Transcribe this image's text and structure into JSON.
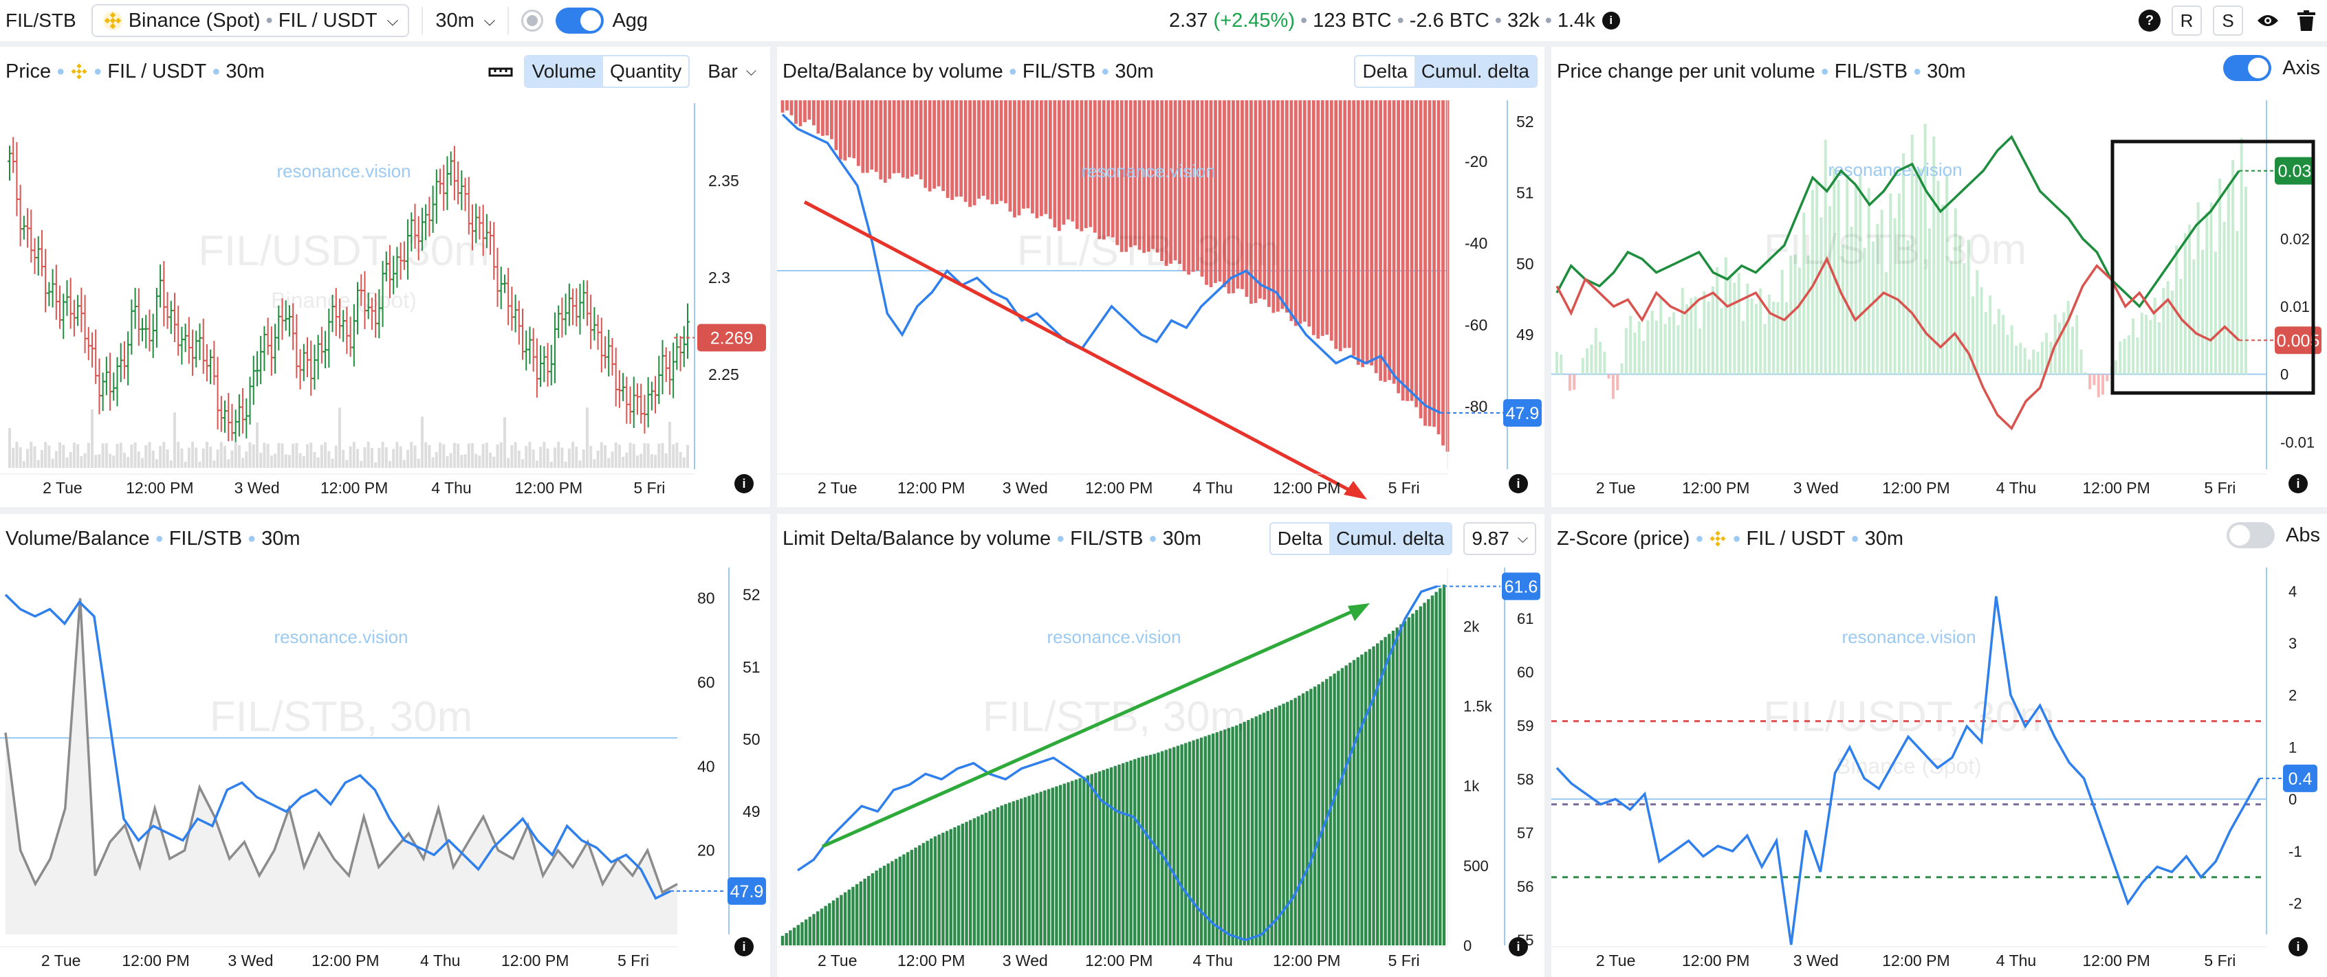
{
  "topbar": {
    "symbol": "FIL/STB",
    "exchange_name": "Binance (Spot)",
    "pair": "FIL / USDT",
    "interval": "30m",
    "agg_label": "Agg",
    "price": "2.37",
    "change": "(+2.45%)",
    "stat_btc_volume": "123 BTC",
    "stat_btc_delta": "-2.6 BTC",
    "stat_trades": "32k",
    "stat_count": "1.4k",
    "btn_r": "R",
    "btn_s": "S",
    "help": "?"
  },
  "colors": {
    "accent": "#2f80ed",
    "red": "#d9534f",
    "green": "#1e8e3e",
    "light_green": "#c8ecd1",
    "light_red": "#f6b8b8",
    "annotation_red": "#e8332a",
    "annotation_green": "#2eaa3a"
  },
  "x_labels": [
    "2 Tue",
    "12:00 PM",
    "3 Wed",
    "12:00 PM",
    "4 Thu",
    "12:00 PM",
    "5 Fri"
  ],
  "watermark": "resonance.vision",
  "panels": {
    "price": {
      "title": "Price",
      "pair": "FIL / USDT",
      "interval": "30m",
      "seg_volume": "Volume",
      "seg_quantity": "Quantity",
      "type_select": "Bar",
      "bg_title": "FIL/USDT, 30m",
      "bg_sub": "Binance (Spot)",
      "last_price_label": "2.269",
      "info": "i"
    },
    "delta": {
      "title": "Delta/Balance by volume",
      "pair": "FIL/STB",
      "interval": "30m",
      "seg_delta": "Delta",
      "seg_cumul": "Cumul. delta",
      "bg_title": "FIL/STB, 30m",
      "last_label": "47.9",
      "info": "i"
    },
    "pcpu": {
      "title": "Price change per unit volume",
      "pair": "FIL/STB",
      "interval": "30m",
      "axis_label": "Axis",
      "bg_title": "FIL/STB, 30m",
      "label_green": "0.03",
      "label_red": "0.005",
      "info": "i"
    },
    "volbal": {
      "title": "Volume/Balance",
      "pair": "FIL/STB",
      "interval": "30m",
      "bg_title": "FIL/STB, 30m",
      "last_label": "47.9",
      "info": "i"
    },
    "limit": {
      "title": "Limit Delta/Balance by volume",
      "pair": "FIL/STB",
      "interval": "30m",
      "seg_delta": "Delta",
      "seg_cumul": "Cumul. delta",
      "select_value": "9.87",
      "bg_title": "FIL/STB, 30m",
      "last_label": "61.6",
      "info": "i"
    },
    "zscore": {
      "title": "Z-Score (price)",
      "pair": "FIL / USDT",
      "interval": "30m",
      "abs_label": "Abs",
      "bg_title": "FIL/USDT, 30m",
      "bg_sub": "Binance (Spot)",
      "last_label": "0.4",
      "info": "i"
    }
  },
  "chart_data": [
    {
      "type": "bar",
      "name_ref": "price",
      "chart_kind": "ohlc",
      "y_ticks": [
        "2.35",
        "2.3",
        "2.25"
      ],
      "y_tick_values": [
        2.35,
        2.3,
        2.25
      ],
      "ylim": [
        2.21,
        2.39
      ],
      "close_path": [
        2.36,
        2.33,
        2.31,
        2.3,
        2.28,
        2.29,
        2.27,
        2.25,
        2.24,
        2.26,
        2.28,
        2.27,
        2.29,
        2.28,
        2.26,
        2.27,
        2.25,
        2.23,
        2.22,
        2.24,
        2.26,
        2.27,
        2.28,
        2.26,
        2.25,
        2.27,
        2.28,
        2.27,
        2.29,
        2.28,
        2.3,
        2.31,
        2.32,
        2.33,
        2.34,
        2.36,
        2.34,
        2.33,
        2.32,
        2.3,
        2.28,
        2.27,
        2.25,
        2.26,
        2.28,
        2.29,
        2.28,
        2.27,
        2.25,
        2.24,
        2.23,
        2.24,
        2.25,
        2.26,
        2.269
      ],
      "last": 2.269
    },
    {
      "type": "bar",
      "name_ref": "delta",
      "left_ticks": [
        "-20",
        "-40",
        "-60",
        "-80"
      ],
      "left_tick_values": [
        -20,
        -40,
        -60,
        -80
      ],
      "left_lim": [
        -92,
        -5
      ],
      "right_ticks": [
        "52",
        "51",
        "50",
        "49",
        "48"
      ],
      "right_tick_values": [
        52,
        51,
        50,
        49,
        48
      ],
      "right_lim": [
        47.3,
        52.3
      ],
      "cumul_delta_bars": [
        -8,
        -10,
        -11,
        -13,
        -18,
        -20,
        -22,
        -24,
        -24,
        -23,
        -25,
        -27,
        -28,
        -30,
        -30,
        -29,
        -31,
        -33,
        -32,
        -34,
        -36,
        -35,
        -37,
        -38,
        -40,
        -42,
        -41,
        -43,
        -45,
        -46,
        -48,
        -50,
        -51,
        -52,
        -54,
        -55,
        -57,
        -59,
        -61,
        -63,
        -65,
        -67,
        -70,
        -72,
        -75,
        -78,
        -82,
        -86,
        -90
      ],
      "balance_line": [
        52.1,
        51.9,
        51.8,
        51.7,
        51.4,
        51.1,
        50.3,
        49.3,
        49.0,
        49.4,
        49.6,
        49.9,
        49.7,
        49.8,
        49.6,
        49.5,
        49.2,
        49.3,
        49.1,
        48.9,
        48.8,
        49.1,
        49.4,
        49.2,
        49.0,
        48.9,
        49.2,
        49.1,
        49.4,
        49.6,
        49.8,
        49.9,
        49.7,
        49.6,
        49.3,
        49.0,
        48.8,
        48.6,
        48.7,
        48.6,
        48.7,
        48.4,
        48.2,
        48.0,
        47.9
      ],
      "last": 47.9
    },
    {
      "type": "line",
      "name_ref": "pcpu",
      "y_ticks": [
        "0.03",
        "0.02",
        "0.01",
        "0",
        "-0.01"
      ],
      "y_tick_values": [
        0.03,
        0.02,
        0.01,
        0,
        -0.01
      ],
      "ylim": [
        -0.012,
        0.04
      ],
      "series": [
        {
          "name": "green",
          "values": [
            0.012,
            0.016,
            0.014,
            0.013,
            0.015,
            0.018,
            0.017,
            0.015,
            0.016,
            0.017,
            0.018,
            0.015,
            0.014,
            0.016,
            0.015,
            0.017,
            0.019,
            0.024,
            0.029,
            0.027,
            0.03,
            0.028,
            0.025,
            0.027,
            0.03,
            0.031,
            0.027,
            0.024,
            0.026,
            0.028,
            0.03,
            0.033,
            0.035,
            0.031,
            0.027,
            0.025,
            0.023,
            0.02,
            0.018,
            0.014,
            0.012,
            0.01,
            0.013,
            0.016,
            0.019,
            0.022,
            0.024,
            0.027,
            0.03
          ]
        },
        {
          "name": "red",
          "values": [
            0.013,
            0.009,
            0.014,
            0.012,
            0.01,
            0.011,
            0.008,
            0.012,
            0.01,
            0.009,
            0.011,
            0.012,
            0.01,
            0.011,
            0.012,
            0.009,
            0.008,
            0.01,
            0.013,
            0.017,
            0.012,
            0.008,
            0.01,
            0.012,
            0.011,
            0.009,
            0.006,
            0.004,
            0.006,
            0.003,
            -0.002,
            -0.006,
            -0.008,
            -0.004,
            -0.002,
            0.004,
            0.008,
            0.013,
            0.016,
            0.014,
            0.01,
            0.012,
            0.009,
            0.011,
            0.008,
            0.006,
            0.005,
            0.007,
            0.005
          ]
        }
      ],
      "histogram": [
        0.006,
        -0.004,
        0.004,
        0.008,
        -0.006,
        0.01,
        0.007,
        0.012,
        0.009,
        0.014,
        0.011,
        0.016,
        0.018,
        0.014,
        0.013,
        0.012,
        0.017,
        0.022,
        0.031,
        0.036,
        0.028,
        0.032,
        0.026,
        0.025,
        0.033,
        0.037,
        0.038,
        0.031,
        0.024,
        0.018,
        0.012,
        0.01,
        0.006,
        0.003,
        0.006,
        0.01,
        0.012,
        -0.002,
        -0.004,
        0.004,
        0.008,
        0.01,
        0.012,
        0.018,
        0.024,
        0.026,
        0.028,
        0.033,
        0.036
      ],
      "label_green": 0.03,
      "label_red": 0.005
    },
    {
      "type": "line",
      "name_ref": "volbal",
      "left_ticks": [
        "80",
        "60",
        "40",
        "20"
      ],
      "left_tick_values": [
        80,
        60,
        40,
        20
      ],
      "left_lim": [
        0,
        86
      ],
      "right_ticks": [
        "52",
        "51",
        "50",
        "49",
        "48"
      ],
      "right_tick_values": [
        52,
        51,
        50,
        49,
        48
      ],
      "right_lim": [
        47.3,
        52.3
      ],
      "series": [
        {
          "name": "balance",
          "values": [
            52.0,
            51.8,
            51.7,
            51.8,
            51.6,
            51.9,
            51.7,
            50.3,
            48.9,
            48.6,
            48.8,
            48.7,
            48.6,
            48.9,
            48.8,
            49.3,
            49.4,
            49.2,
            49.1,
            49.0,
            49.2,
            49.3,
            49.1,
            49.4,
            49.5,
            49.3,
            48.9,
            48.6,
            48.5,
            48.4,
            48.6,
            48.4,
            48.2,
            48.5,
            48.7,
            48.9,
            48.6,
            48.4,
            48.8,
            48.6,
            48.5,
            48.3,
            48.4,
            48.2,
            47.8,
            47.9
          ]
        },
        {
          "name": "volume",
          "values": [
            48,
            20,
            12,
            18,
            30,
            80,
            14,
            22,
            26,
            16,
            30,
            18,
            20,
            35,
            28,
            18,
            22,
            14,
            20,
            30,
            16,
            24,
            18,
            14,
            28,
            16,
            20,
            24,
            18,
            30,
            16,
            22,
            28,
            20,
            18,
            26,
            14,
            20,
            16,
            22,
            12,
            18,
            14,
            20,
            10,
            12
          ]
        }
      ],
      "last": 47.9
    },
    {
      "type": "bar",
      "name_ref": "limit",
      "left_ticks": [
        "2k",
        "1.5k",
        "1k",
        "500",
        "0"
      ],
      "left_tick_values": [
        2000,
        1500,
        1000,
        500,
        0
      ],
      "left_lim": [
        0,
        2350
      ],
      "right_ticks": [
        "61",
        "60",
        "59",
        "58",
        "57",
        "56",
        "55"
      ],
      "right_tick_values": [
        61,
        60,
        59,
        58,
        57,
        56,
        55
      ],
      "right_lim": [
        54.9,
        61.9
      ],
      "cumul_delta_bars": [
        60,
        120,
        180,
        240,
        300,
        360,
        420,
        480,
        530,
        580,
        630,
        680,
        720,
        760,
        800,
        840,
        880,
        910,
        940,
        970,
        1000,
        1030,
        1060,
        1090,
        1120,
        1150,
        1180,
        1200,
        1230,
        1260,
        1290,
        1320,
        1350,
        1380,
        1420,
        1460,
        1500,
        1540,
        1590,
        1640,
        1700,
        1760,
        1820,
        1880,
        1950,
        2020,
        2100,
        2180,
        2260
      ],
      "balance_line": [
        56.3,
        56.5,
        56.9,
        57.2,
        57.5,
        57.4,
        57.8,
        57.9,
        58.1,
        58.0,
        58.2,
        58.3,
        58.1,
        58.0,
        58.2,
        58.3,
        58.4,
        58.2,
        58.0,
        57.6,
        57.4,
        57.3,
        56.9,
        56.5,
        56.0,
        55.6,
        55.3,
        55.1,
        55.0,
        55.1,
        55.4,
        55.8,
        56.4,
        57.2,
        58.0,
        58.8,
        59.5,
        60.3,
        61.0,
        61.5,
        61.6
      ],
      "last": 61.6
    },
    {
      "type": "line",
      "name_ref": "zscore",
      "y_ticks": [
        "4",
        "3",
        "2",
        "1",
        "0",
        "-1",
        "-2"
      ],
      "y_tick_values": [
        4,
        3,
        2,
        1,
        0,
        -1,
        -2
      ],
      "ylim": [
        -2.6,
        4.4
      ],
      "thresholds": [
        1.5,
        -0.1,
        -1.5
      ],
      "series": [
        {
          "name": "zscore",
          "values": [
            0.6,
            0.3,
            0.1,
            -0.1,
            0.0,
            -0.2,
            0.1,
            -1.2,
            -1.0,
            -0.8,
            -1.1,
            -0.9,
            -1.0,
            -0.7,
            -1.3,
            -0.8,
            -2.8,
            -0.6,
            -1.4,
            0.5,
            1.0,
            0.4,
            0.2,
            0.7,
            1.2,
            0.9,
            0.6,
            0.8,
            1.4,
            1.1,
            3.9,
            2.0,
            1.4,
            1.8,
            1.2,
            0.7,
            0.4,
            -0.4,
            -1.2,
            -2.0,
            -1.6,
            -1.3,
            -1.4,
            -1.1,
            -1.5,
            -1.2,
            -0.6,
            -0.1,
            0.4
          ]
        }
      ],
      "last": 0.4
    }
  ]
}
